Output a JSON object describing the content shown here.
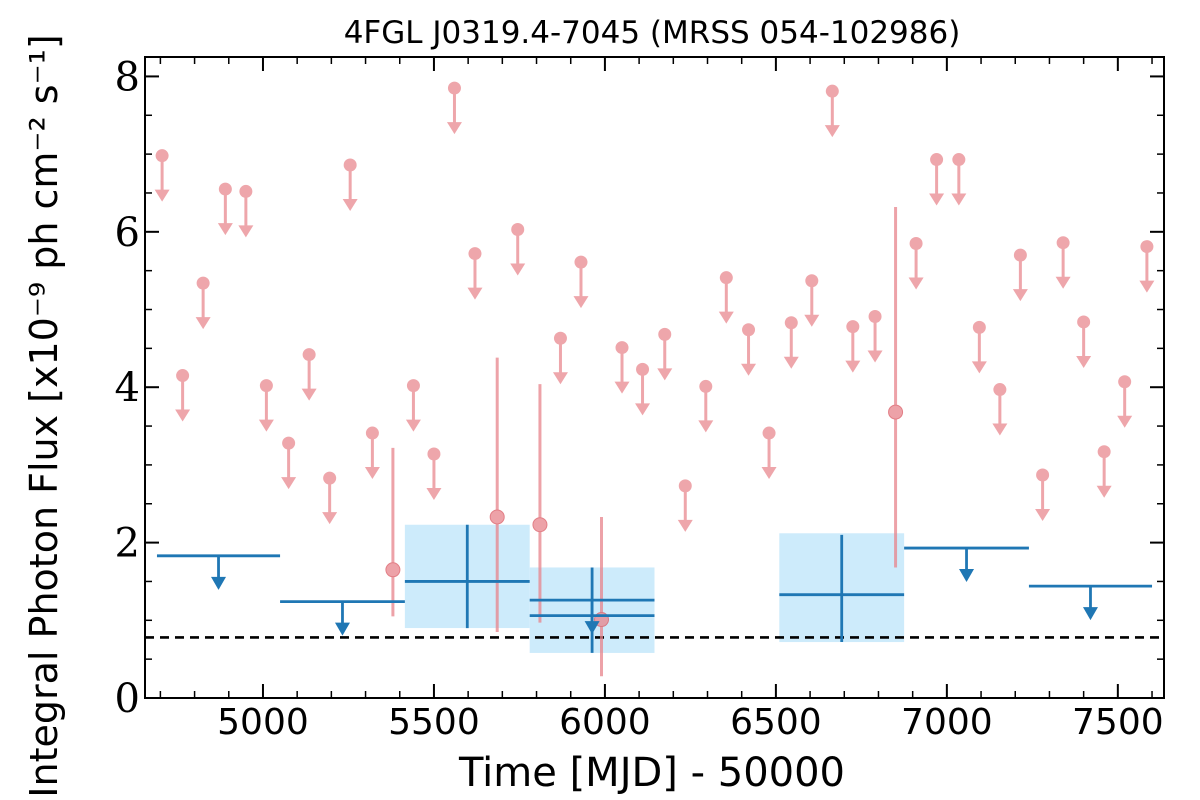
{
  "chart_data": {
    "type": "scatter",
    "title": "4FGL J0319.4-7045 (MRSS 054-102986)",
    "xlabel": "Time [MJD] - 50000",
    "ylabel": "Integral Photon Flux [x10⁻⁹ ph cm⁻² s⁻¹]",
    "xlim": [
      4655,
      7635
    ],
    "ylim": [
      0,
      8.25
    ],
    "x_ticks": [
      5000,
      5500,
      6000,
      6500,
      7000,
      7500
    ],
    "x_tick_labels": [
      "5000",
      "5500",
      "6000",
      "6500",
      "7000",
      "7500"
    ],
    "y_ticks": [
      0,
      2,
      4,
      6,
      8
    ],
    "y_tick_labels": [
      "0",
      "2",
      "4",
      "6",
      "8"
    ],
    "reference_line": {
      "y": 0.78,
      "style": "dashed",
      "color": "#000000"
    },
    "colors": {
      "short_bins": "#e8848b",
      "long_bins": "#1f77b4",
      "long_band": "#cdebfb"
    },
    "series": [
      {
        "role": "short_bin_upper_limits",
        "points": [
          {
            "x": 4705,
            "y": 6.98
          },
          {
            "x": 4765,
            "y": 4.15
          },
          {
            "x": 4825,
            "y": 5.34
          },
          {
            "x": 4890,
            "y": 6.55
          },
          {
            "x": 4950,
            "y": 6.52
          },
          {
            "x": 5010,
            "y": 4.02
          },
          {
            "x": 5075,
            "y": 3.28
          },
          {
            "x": 5135,
            "y": 4.42
          },
          {
            "x": 5195,
            "y": 2.83
          },
          {
            "x": 5255,
            "y": 6.86
          },
          {
            "x": 5320,
            "y": 3.41
          },
          {
            "x": 5440,
            "y": 4.02
          },
          {
            "x": 5500,
            "y": 3.14
          },
          {
            "x": 5560,
            "y": 7.85
          },
          {
            "x": 5620,
            "y": 5.72
          },
          {
            "x": 5745,
            "y": 6.03
          },
          {
            "x": 5870,
            "y": 4.63
          },
          {
            "x": 5930,
            "y": 5.61
          },
          {
            "x": 6050,
            "y": 4.51
          },
          {
            "x": 6110,
            "y": 4.23
          },
          {
            "x": 6175,
            "y": 4.68
          },
          {
            "x": 6235,
            "y": 2.73
          },
          {
            "x": 6295,
            "y": 4.01
          },
          {
            "x": 6355,
            "y": 5.41
          },
          {
            "x": 6420,
            "y": 4.74
          },
          {
            "x": 6480,
            "y": 3.41
          },
          {
            "x": 6545,
            "y": 4.83
          },
          {
            "x": 6605,
            "y": 5.37
          },
          {
            "x": 6665,
            "y": 7.81
          },
          {
            "x": 6725,
            "y": 4.78
          },
          {
            "x": 6790,
            "y": 4.91
          },
          {
            "x": 6910,
            "y": 5.85
          },
          {
            "x": 6970,
            "y": 6.93
          },
          {
            "x": 7035,
            "y": 6.93
          },
          {
            "x": 7095,
            "y": 4.77
          },
          {
            "x": 7155,
            "y": 3.97
          },
          {
            "x": 7215,
            "y": 5.7
          },
          {
            "x": 7280,
            "y": 2.87
          },
          {
            "x": 7340,
            "y": 5.86
          },
          {
            "x": 7400,
            "y": 4.84
          },
          {
            "x": 7460,
            "y": 3.17
          },
          {
            "x": 7520,
            "y": 4.07
          },
          {
            "x": 7585,
            "y": 5.81
          }
        ]
      },
      {
        "role": "short_bin_detections",
        "points": [
          {
            "x": 5380,
            "y": 1.65,
            "yerr_low": 1.05,
            "yerr_high": 3.22
          },
          {
            "x": 5685,
            "y": 2.33,
            "yerr_low": 0.85,
            "yerr_high": 4.38
          },
          {
            "x": 5810,
            "y": 2.23,
            "yerr_low": 0.97,
            "yerr_high": 4.04
          },
          {
            "x": 5990,
            "y": 1.01,
            "yerr_low": 0.28,
            "yerr_high": 2.33
          },
          {
            "x": 6850,
            "y": 3.68,
            "yerr_low": 1.68,
            "yerr_high": 6.32
          }
        ]
      },
      {
        "role": "long_bin_upper_limits",
        "points": [
          {
            "x0": 4690,
            "x1": 5050,
            "y": 1.83
          },
          {
            "x0": 5050,
            "x1": 5415,
            "y": 1.24
          },
          {
            "x0": 5780,
            "x1": 6145,
            "y": 1.26
          },
          {
            "x0": 6875,
            "x1": 7240,
            "y": 1.93
          },
          {
            "x0": 7240,
            "x1": 7600,
            "y": 1.44
          }
        ]
      },
      {
        "role": "long_bin_detections",
        "points": [
          {
            "x0": 5415,
            "x1": 5780,
            "y": 1.5,
            "band_low": 0.9,
            "band_high": 2.23,
            "yerr_low": 0.9,
            "yerr_high": 2.23
          },
          {
            "x0": 5780,
            "x1": 6145,
            "y": 1.06,
            "band_low": 0.58,
            "band_high": 1.68,
            "yerr_low": 0.58,
            "yerr_high": 1.68
          },
          {
            "x0": 6510,
            "x1": 6875,
            "y": 1.33,
            "band_low": 0.72,
            "band_high": 2.12,
            "yerr_low": 0.72,
            "yerr_high": 2.1
          }
        ]
      }
    ]
  }
}
